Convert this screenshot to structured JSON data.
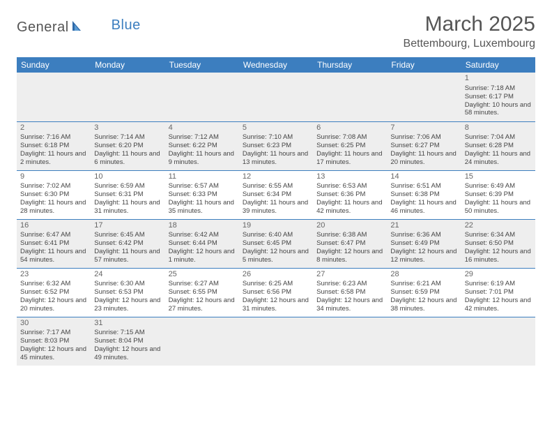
{
  "brand": {
    "part1": "General",
    "part2": "Blue"
  },
  "title": "March 2025",
  "location": "Bettembourg, Luxembourg",
  "colors": {
    "header_bg": "#3c7ebf",
    "header_fg": "#ffffff",
    "alt_row_bg": "#eeeeee",
    "border": "#3c7ebf",
    "text": "#444444",
    "title_color": "#555555"
  },
  "dayNames": [
    "Sunday",
    "Monday",
    "Tuesday",
    "Wednesday",
    "Thursday",
    "Friday",
    "Saturday"
  ],
  "weeks": [
    [
      null,
      null,
      null,
      null,
      null,
      null,
      {
        "n": "1",
        "sr": "Sunrise: 7:18 AM",
        "ss": "Sunset: 6:17 PM",
        "dl": "Daylight: 10 hours and 58 minutes."
      }
    ],
    [
      {
        "n": "2",
        "sr": "Sunrise: 7:16 AM",
        "ss": "Sunset: 6:18 PM",
        "dl": "Daylight: 11 hours and 2 minutes."
      },
      {
        "n": "3",
        "sr": "Sunrise: 7:14 AM",
        "ss": "Sunset: 6:20 PM",
        "dl": "Daylight: 11 hours and 6 minutes."
      },
      {
        "n": "4",
        "sr": "Sunrise: 7:12 AM",
        "ss": "Sunset: 6:22 PM",
        "dl": "Daylight: 11 hours and 9 minutes."
      },
      {
        "n": "5",
        "sr": "Sunrise: 7:10 AM",
        "ss": "Sunset: 6:23 PM",
        "dl": "Daylight: 11 hours and 13 minutes."
      },
      {
        "n": "6",
        "sr": "Sunrise: 7:08 AM",
        "ss": "Sunset: 6:25 PM",
        "dl": "Daylight: 11 hours and 17 minutes."
      },
      {
        "n": "7",
        "sr": "Sunrise: 7:06 AM",
        "ss": "Sunset: 6:27 PM",
        "dl": "Daylight: 11 hours and 20 minutes."
      },
      {
        "n": "8",
        "sr": "Sunrise: 7:04 AM",
        "ss": "Sunset: 6:28 PM",
        "dl": "Daylight: 11 hours and 24 minutes."
      }
    ],
    [
      {
        "n": "9",
        "sr": "Sunrise: 7:02 AM",
        "ss": "Sunset: 6:30 PM",
        "dl": "Daylight: 11 hours and 28 minutes."
      },
      {
        "n": "10",
        "sr": "Sunrise: 6:59 AM",
        "ss": "Sunset: 6:31 PM",
        "dl": "Daylight: 11 hours and 31 minutes."
      },
      {
        "n": "11",
        "sr": "Sunrise: 6:57 AM",
        "ss": "Sunset: 6:33 PM",
        "dl": "Daylight: 11 hours and 35 minutes."
      },
      {
        "n": "12",
        "sr": "Sunrise: 6:55 AM",
        "ss": "Sunset: 6:34 PM",
        "dl": "Daylight: 11 hours and 39 minutes."
      },
      {
        "n": "13",
        "sr": "Sunrise: 6:53 AM",
        "ss": "Sunset: 6:36 PM",
        "dl": "Daylight: 11 hours and 42 minutes."
      },
      {
        "n": "14",
        "sr": "Sunrise: 6:51 AM",
        "ss": "Sunset: 6:38 PM",
        "dl": "Daylight: 11 hours and 46 minutes."
      },
      {
        "n": "15",
        "sr": "Sunrise: 6:49 AM",
        "ss": "Sunset: 6:39 PM",
        "dl": "Daylight: 11 hours and 50 minutes."
      }
    ],
    [
      {
        "n": "16",
        "sr": "Sunrise: 6:47 AM",
        "ss": "Sunset: 6:41 PM",
        "dl": "Daylight: 11 hours and 54 minutes."
      },
      {
        "n": "17",
        "sr": "Sunrise: 6:45 AM",
        "ss": "Sunset: 6:42 PM",
        "dl": "Daylight: 11 hours and 57 minutes."
      },
      {
        "n": "18",
        "sr": "Sunrise: 6:42 AM",
        "ss": "Sunset: 6:44 PM",
        "dl": "Daylight: 12 hours and 1 minute."
      },
      {
        "n": "19",
        "sr": "Sunrise: 6:40 AM",
        "ss": "Sunset: 6:45 PM",
        "dl": "Daylight: 12 hours and 5 minutes."
      },
      {
        "n": "20",
        "sr": "Sunrise: 6:38 AM",
        "ss": "Sunset: 6:47 PM",
        "dl": "Daylight: 12 hours and 8 minutes."
      },
      {
        "n": "21",
        "sr": "Sunrise: 6:36 AM",
        "ss": "Sunset: 6:49 PM",
        "dl": "Daylight: 12 hours and 12 minutes."
      },
      {
        "n": "22",
        "sr": "Sunrise: 6:34 AM",
        "ss": "Sunset: 6:50 PM",
        "dl": "Daylight: 12 hours and 16 minutes."
      }
    ],
    [
      {
        "n": "23",
        "sr": "Sunrise: 6:32 AM",
        "ss": "Sunset: 6:52 PM",
        "dl": "Daylight: 12 hours and 20 minutes."
      },
      {
        "n": "24",
        "sr": "Sunrise: 6:30 AM",
        "ss": "Sunset: 6:53 PM",
        "dl": "Daylight: 12 hours and 23 minutes."
      },
      {
        "n": "25",
        "sr": "Sunrise: 6:27 AM",
        "ss": "Sunset: 6:55 PM",
        "dl": "Daylight: 12 hours and 27 minutes."
      },
      {
        "n": "26",
        "sr": "Sunrise: 6:25 AM",
        "ss": "Sunset: 6:56 PM",
        "dl": "Daylight: 12 hours and 31 minutes."
      },
      {
        "n": "27",
        "sr": "Sunrise: 6:23 AM",
        "ss": "Sunset: 6:58 PM",
        "dl": "Daylight: 12 hours and 34 minutes."
      },
      {
        "n": "28",
        "sr": "Sunrise: 6:21 AM",
        "ss": "Sunset: 6:59 PM",
        "dl": "Daylight: 12 hours and 38 minutes."
      },
      {
        "n": "29",
        "sr": "Sunrise: 6:19 AM",
        "ss": "Sunset: 7:01 PM",
        "dl": "Daylight: 12 hours and 42 minutes."
      }
    ],
    [
      {
        "n": "30",
        "sr": "Sunrise: 7:17 AM",
        "ss": "Sunset: 8:03 PM",
        "dl": "Daylight: 12 hours and 45 minutes."
      },
      {
        "n": "31",
        "sr": "Sunrise: 7:15 AM",
        "ss": "Sunset: 8:04 PM",
        "dl": "Daylight: 12 hours and 49 minutes."
      },
      null,
      null,
      null,
      null,
      null
    ]
  ]
}
